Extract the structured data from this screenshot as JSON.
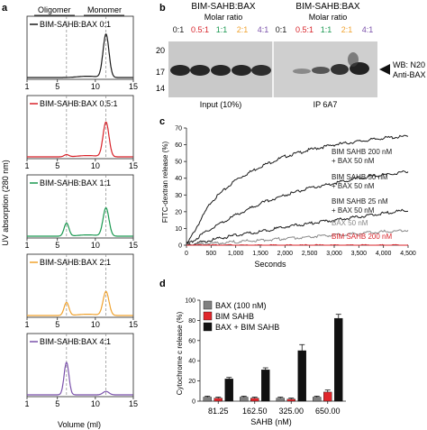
{
  "panel_a": {
    "letter": "a",
    "header_oligomer": "Oligomer",
    "header_monomer": "Monomer",
    "ylabel": "UV absorption (280 nm)",
    "xlabel": "Volume (ml)",
    "xticks": [
      "1",
      "5",
      "10",
      "15"
    ],
    "subplots": [
      {
        "label": "BIM-SAHB:BAX 0:1",
        "color": "#1a1a1a",
        "oligomer": 0.0,
        "monomer": 1.0
      },
      {
        "label": "BIM-SAHB:BAX 0.5:1",
        "color": "#d8232a",
        "oligomer": 0.05,
        "monomer": 0.8
      },
      {
        "label": "BIM-SAHB:BAX 1:1",
        "color": "#1a9850",
        "oligomer": 0.3,
        "monomer": 0.65
      },
      {
        "label": "BIM-SAHB:BAX 2:1",
        "color": "#f0a22e",
        "oligomer": 0.3,
        "monomer": 0.55
      },
      {
        "label": "BIM-SAHB:BAX 4:1",
        "color": "#7b52ab",
        "oligomer": 0.75,
        "monomer": 0.08
      }
    ]
  },
  "panel_b": {
    "letter": "b",
    "title_left": "BIM-SAHB:BAX",
    "title_right": "BIM-SAHB:BAX",
    "subtitle": "Molar ratio",
    "ratios": [
      {
        "text": "0:1",
        "color": "#1a1a1a"
      },
      {
        "text": "0.5:1",
        "color": "#d8232a"
      },
      {
        "text": "1:1",
        "color": "#1a9850"
      },
      {
        "text": "2:1",
        "color": "#f0a22e"
      },
      {
        "text": "4:1",
        "color": "#7b52ab"
      }
    ],
    "mw_markers": [
      "20",
      "17",
      "14"
    ],
    "wb_label_1": "WB: N20",
    "wb_label_2": "Anti-BAX",
    "lane_label_left": "Input (10%)",
    "lane_label_right": "IP 6A7"
  },
  "panel_c": {
    "letter": "c",
    "ylabel": "FITC-dextran release (%)",
    "xlabel": "Seconds",
    "legend": [
      {
        "line1": "BIM SAHB  200 nM",
        "line2": "+ BAX 50 nM",
        "color": "#1a1a1a"
      },
      {
        "line1": "BIM SAHB 50 nM",
        "line2": "+ BAX 50 nM",
        "color": "#1a1a1a"
      },
      {
        "line1": "BIM SAHB 25 nM",
        "line2": "+ BAX 50 nM",
        "color": "#1a1a1a"
      },
      {
        "line1": "BAX 50 nM",
        "line2": "",
        "color": "#888888"
      },
      {
        "line1": "BIM SAHB  200 nM",
        "line2": "",
        "color": "#d8232a"
      }
    ]
  },
  "panel_d": {
    "letter": "d",
    "legend": [
      {
        "text": "BAX (100 nM)",
        "color": "#808080"
      },
      {
        "text": "BIM SAHB",
        "color": "#e0262b"
      },
      {
        "text": "BAX + BIM SAHB",
        "color": "#111111"
      }
    ]
  },
  "chart_data": [
    {
      "type": "line",
      "panel": "c",
      "x": [
        0,
        500,
        1000,
        1500,
        2000,
        2500,
        3000,
        3500,
        4000,
        4500
      ],
      "xticks": [
        "0",
        "500",
        "1,000",
        "1,500",
        "2,000",
        "2,500",
        "3,000",
        "3,500",
        "4,000",
        "4,500"
      ],
      "xlim": [
        0,
        4500
      ],
      "ylim": [
        0,
        70
      ],
      "yticks": [
        "0",
        "10",
        "20",
        "30",
        "40",
        "50",
        "60",
        "70"
      ],
      "series": [
        {
          "name": "BIM SAHB 200 nM + BAX 50 nM",
          "values": [
            0,
            26,
            39,
            47,
            53,
            57,
            60,
            62,
            64,
            65
          ]
        },
        {
          "name": "BIM SAHB 50 nM + BAX 50 nM",
          "values": [
            0,
            10,
            18,
            25,
            30,
            34,
            37,
            40,
            42,
            44
          ]
        },
        {
          "name": "BIM SAHB 25 nM + BAX 50 nM",
          "values": [
            0,
            3,
            6,
            8,
            11,
            13,
            15,
            17,
            19,
            21
          ]
        },
        {
          "name": "BAX 50 nM",
          "values": [
            0,
            1,
            2,
            3,
            4,
            5,
            6,
            7,
            8,
            9
          ]
        },
        {
          "name": "BIM SAHB 200 nM",
          "values": [
            0,
            0,
            0,
            0,
            0,
            0,
            0,
            0,
            0,
            0
          ]
        }
      ]
    },
    {
      "type": "bar",
      "panel": "d",
      "ylabel": "Cytochrome c release (%)",
      "xlabel": "SAHB (nM)",
      "categories": [
        "81.25",
        "162.50",
        "325.00",
        "650.00"
      ],
      "ylim": [
        0,
        100
      ],
      "yticks": [
        "0",
        "20",
        "40",
        "60",
        "80",
        "100"
      ],
      "series": [
        {
          "name": "BAX (100 nM)",
          "values": [
            4,
            4,
            3,
            4
          ],
          "errors": [
            1,
            1,
            1,
            1
          ]
        },
        {
          "name": "BIM SAHB",
          "values": [
            3,
            3,
            2,
            9
          ],
          "errors": [
            1,
            1,
            1,
            2
          ]
        },
        {
          "name": "BAX + BIM SAHB",
          "values": [
            22,
            31,
            50,
            82
          ],
          "errors": [
            1.5,
            2,
            6,
            4
          ]
        }
      ]
    }
  ]
}
